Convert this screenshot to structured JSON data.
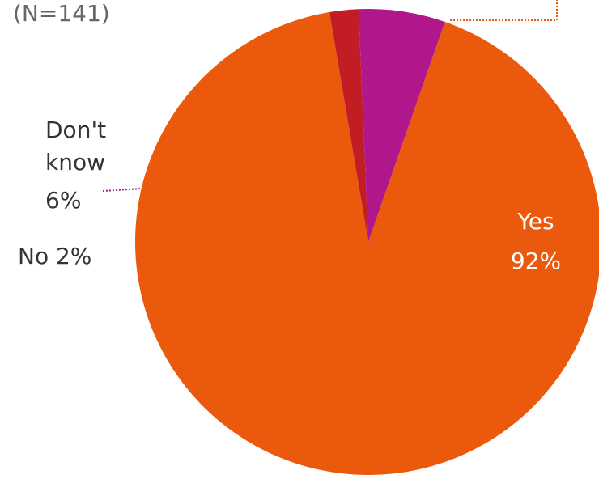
{
  "note": "(N=141)",
  "chart_data": {
    "type": "pie",
    "title": "",
    "slices": [
      {
        "label": "Yes",
        "value": 92,
        "value_label": "92%",
        "color": "#EB5A0C"
      },
      {
        "label": "No",
        "value": 2,
        "value_label": "2%",
        "color": "#C21C24"
      },
      {
        "label": "Don't know",
        "value": 6,
        "value_label": "6%",
        "color": "#B0178A"
      }
    ],
    "start_angle_deg": -70.8,
    "direction": "clockwise",
    "text_color": "#333333"
  }
}
